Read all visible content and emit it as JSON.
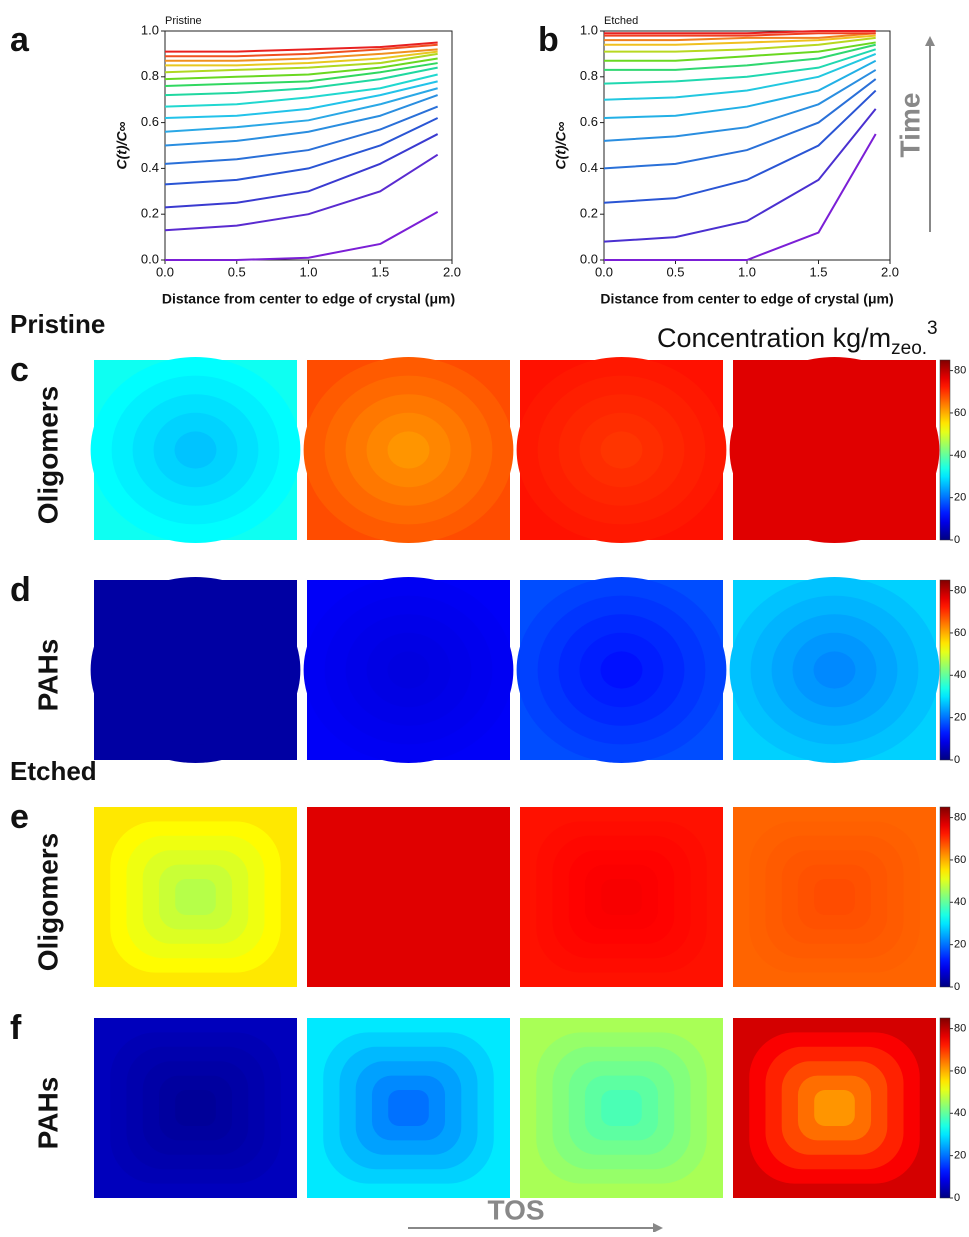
{
  "chart_data": [
    {
      "type": "line",
      "panel_label": "a",
      "title": "Pristine",
      "x_label": "Distance from center to edge of crystal (μm)",
      "y_label": "C(t)/C∞",
      "x": [
        0,
        0.5,
        1,
        1.5,
        1.9
      ],
      "xlim": [
        0,
        2
      ],
      "ylim": [
        0,
        1
      ],
      "xticks": [
        {
          "value": 0,
          "label": "0.0"
        },
        {
          "value": 0.5,
          "label": "0.5"
        },
        {
          "value": 1,
          "label": "1.0"
        },
        {
          "value": 1.5,
          "label": "1.5"
        },
        {
          "value": 2,
          "label": "2.0"
        }
      ],
      "yticks": [
        {
          "value": 0,
          "label": "0.0"
        },
        0.2,
        0.4,
        0.6,
        0.8,
        {
          "value": 1,
          "label": "1.0"
        }
      ],
      "series": [
        {
          "color": "#7b1fd6",
          "values": [
            0,
            0,
            0.01,
            0.07,
            0.21
          ]
        },
        {
          "color": "#5a2bd0",
          "values": [
            0.13,
            0.15,
            0.2,
            0.3,
            0.46
          ]
        },
        {
          "color": "#3a3ad0",
          "values": [
            0.23,
            0.25,
            0.3,
            0.42,
            0.55
          ]
        },
        {
          "color": "#2a55d4",
          "values": [
            0.33,
            0.35,
            0.4,
            0.5,
            0.62
          ]
        },
        {
          "color": "#2a70d8",
          "values": [
            0.42,
            0.44,
            0.48,
            0.57,
            0.67
          ]
        },
        {
          "color": "#2a8ee0",
          "values": [
            0.5,
            0.52,
            0.56,
            0.63,
            0.72
          ]
        },
        {
          "color": "#2aa8e6",
          "values": [
            0.56,
            0.58,
            0.61,
            0.68,
            0.75
          ]
        },
        {
          "color": "#22c3ea",
          "values": [
            0.62,
            0.63,
            0.66,
            0.72,
            0.78
          ]
        },
        {
          "color": "#20d8d0",
          "values": [
            0.67,
            0.68,
            0.71,
            0.75,
            0.81
          ]
        },
        {
          "color": "#20d8a0",
          "values": [
            0.72,
            0.73,
            0.75,
            0.79,
            0.84
          ]
        },
        {
          "color": "#30d860",
          "values": [
            0.76,
            0.77,
            0.78,
            0.82,
            0.86
          ]
        },
        {
          "color": "#6ad820",
          "values": [
            0.79,
            0.8,
            0.81,
            0.84,
            0.88
          ]
        },
        {
          "color": "#b0d820",
          "values": [
            0.82,
            0.83,
            0.84,
            0.86,
            0.9
          ]
        },
        {
          "color": "#e8c820",
          "values": [
            0.85,
            0.85,
            0.86,
            0.88,
            0.91
          ]
        },
        {
          "color": "#f09020",
          "values": [
            0.87,
            0.87,
            0.88,
            0.9,
            0.92
          ]
        },
        {
          "color": "#f05020",
          "values": [
            0.89,
            0.89,
            0.9,
            0.92,
            0.94
          ]
        },
        {
          "color": "#e82020",
          "values": [
            0.91,
            0.91,
            0.92,
            0.93,
            0.95
          ]
        }
      ]
    },
    {
      "type": "line",
      "panel_label": "b",
      "title": "Etched",
      "x_label": "Distance from center to edge of crystal (μm)",
      "y_label": "C(t)/C∞",
      "x": [
        0,
        0.5,
        1,
        1.5,
        1.9
      ],
      "xlim": [
        0,
        2
      ],
      "ylim": [
        0,
        1
      ],
      "xticks": [
        {
          "value": 0,
          "label": "0.0"
        },
        {
          "value": 0.5,
          "label": "0.5"
        },
        {
          "value": 1,
          "label": "1.0"
        },
        {
          "value": 1.5,
          "label": "1.5"
        },
        {
          "value": 2,
          "label": "2.0"
        }
      ],
      "yticks": [
        {
          "value": 0,
          "label": "0.0"
        },
        0.2,
        0.4,
        0.6,
        0.8,
        {
          "value": 1,
          "label": "1.0"
        }
      ],
      "series": [
        {
          "color": "#7b1fd6",
          "values": [
            0,
            0,
            0,
            0.12,
            0.55
          ]
        },
        {
          "color": "#4a30d0",
          "values": [
            0.08,
            0.1,
            0.17,
            0.35,
            0.66
          ]
        },
        {
          "color": "#2a55d4",
          "values": [
            0.25,
            0.27,
            0.35,
            0.5,
            0.74
          ]
        },
        {
          "color": "#2a70d8",
          "values": [
            0.4,
            0.42,
            0.48,
            0.6,
            0.79
          ]
        },
        {
          "color": "#2a8ee0",
          "values": [
            0.52,
            0.54,
            0.58,
            0.68,
            0.83
          ]
        },
        {
          "color": "#22b0e6",
          "values": [
            0.62,
            0.63,
            0.67,
            0.74,
            0.87
          ]
        },
        {
          "color": "#22c8e0",
          "values": [
            0.7,
            0.71,
            0.74,
            0.8,
            0.9
          ]
        },
        {
          "color": "#20d8b0",
          "values": [
            0.77,
            0.78,
            0.8,
            0.84,
            0.92
          ]
        },
        {
          "color": "#30d870",
          "values": [
            0.83,
            0.83,
            0.85,
            0.88,
            0.94
          ]
        },
        {
          "color": "#6ad820",
          "values": [
            0.87,
            0.87,
            0.89,
            0.91,
            0.95
          ]
        },
        {
          "color": "#b8d820",
          "values": [
            0.91,
            0.91,
            0.92,
            0.94,
            0.97
          ]
        },
        {
          "color": "#f0c020",
          "values": [
            0.94,
            0.94,
            0.95,
            0.96,
            0.98
          ]
        },
        {
          "color": "#f08020",
          "values": [
            0.96,
            0.96,
            0.97,
            0.97,
            0.99
          ]
        },
        {
          "color": "#f04020",
          "values": [
            0.98,
            0.98,
            0.98,
            0.99,
            0.99
          ]
        },
        {
          "color": "#e82020",
          "values": [
            0.99,
            0.99,
            0.99,
            1,
            1
          ]
        }
      ]
    },
    {
      "type": "heatmap",
      "colorbar_title": "Concentration kg/m",
      "colorbar_subscript": "zeo.",
      "colorbar_superscript": "3",
      "zlim": [
        0,
        85
      ],
      "zticks": [
        0,
        20,
        40,
        60,
        80
      ],
      "x_label": "TOS",
      "y_arrow_label": "Time",
      "rows": [
        {
          "panel_label": "c",
          "section": "Pristine",
          "label": "Oligomers",
          "shape": "ellipse",
          "values": [
            {
              "center": 27,
              "edge": 33
            },
            {
              "center": 62,
              "edge": 68
            },
            {
              "center": 70,
              "edge": 73
            },
            {
              "center": 77,
              "edge": 77
            }
          ]
        },
        {
          "panel_label": "d",
          "label": "PAHs",
          "shape": "ellipse",
          "values": [
            {
              "center": 3,
              "edge": 3
            },
            {
              "center": 8,
              "edge": 10
            },
            {
              "center": 12,
              "edge": 17
            },
            {
              "center": 22,
              "edge": 28
            }
          ]
        },
        {
          "panel_label": "e",
          "section": "Etched",
          "label": "Oligomers",
          "shape": "rounded",
          "values": [
            {
              "center": 47,
              "edge": 55
            },
            {
              "center": 77,
              "edge": 77
            },
            {
              "center": 75,
              "edge": 73
            },
            {
              "center": 68,
              "edge": 66
            }
          ]
        },
        {
          "panel_label": "f",
          "label": "PAHs",
          "shape": "rounded",
          "values": [
            {
              "center": 2,
              "edge": 5
            },
            {
              "center": 20,
              "edge": 30
            },
            {
              "center": 38,
              "edge": 46
            },
            {
              "center": 62,
              "edge": 78
            }
          ]
        }
      ]
    }
  ]
}
